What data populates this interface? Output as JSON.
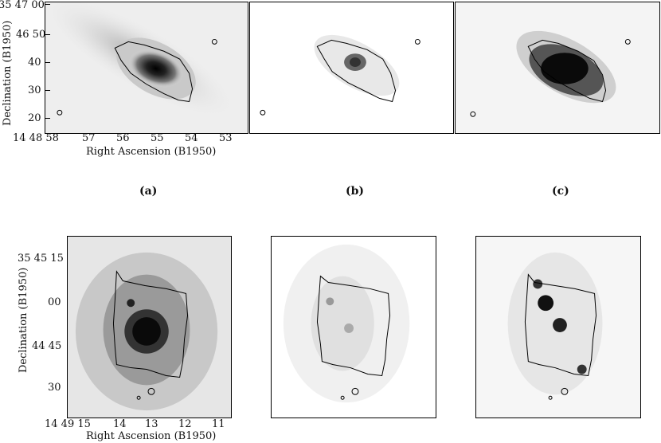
{
  "figure": {
    "top_row": {
      "x_axis_title": "Right Ascension (B1950)",
      "y_axis_title": "Declination (B1950)",
      "dec_first_label": "35 47 00",
      "dec_labels": [
        "46 50",
        "40",
        "30",
        "20"
      ],
      "ra_first_label": "14 48 58",
      "ra_labels": [
        "57",
        "56",
        "55",
        "54",
        "53"
      ],
      "captions": [
        "(a)",
        "(b)",
        "(c)"
      ]
    },
    "bottom_row": {
      "x_axis_title": "Right Ascension (B1950)",
      "y_axis_title": "Declination (B1950)",
      "dec_first_label": "35 45 15",
      "dec_labels": [
        "00",
        "44 45",
        "30"
      ],
      "ra_first_label": "14 49 15",
      "ra_labels": [
        "14",
        "13",
        "12",
        "11"
      ]
    }
  },
  "colors": {
    "contour": "#000000",
    "image_gray": "#333333"
  }
}
